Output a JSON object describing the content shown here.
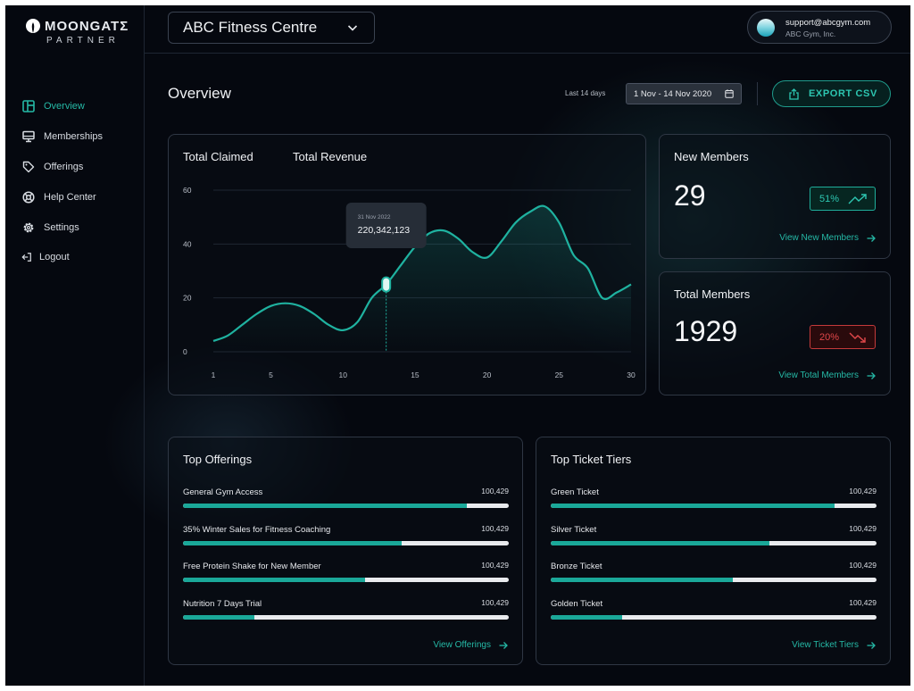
{
  "brand": {
    "name": "MOONGATΣ",
    "subtitle": "PARTNER"
  },
  "sidebar": {
    "items": [
      {
        "label": "Overview",
        "icon": "layout-icon",
        "active": true
      },
      {
        "label": "Memberships",
        "icon": "monitor-icon",
        "active": false
      },
      {
        "label": "Offerings",
        "icon": "tag-icon",
        "active": false
      },
      {
        "label": "Help Center",
        "icon": "lifebuoy-icon",
        "active": false
      },
      {
        "label": "Settings",
        "icon": "gear-icon",
        "active": false
      },
      {
        "label": "Logout",
        "icon": "logout-icon",
        "active": false
      }
    ]
  },
  "header": {
    "gym_name": "ABC Fitness Centre",
    "account_email": "support@abcgym.com",
    "account_company": "ABC Gym, Inc."
  },
  "overview": {
    "title": "Overview",
    "range_label": "Last 14 days",
    "date_range": "1 Nov - 14 Nov 2020",
    "export_label": "EXPORT CSV"
  },
  "chart": {
    "tabs": [
      "Total Claimed",
      "Total Revenue"
    ],
    "tooltip_date": "31 Nov 2022",
    "tooltip_value": "220,342,123"
  },
  "chart_data": {
    "type": "line",
    "x": [
      1,
      2,
      3,
      4,
      5,
      6,
      7,
      8,
      9,
      10,
      11,
      12,
      13,
      14,
      15,
      16,
      17,
      18,
      19,
      20,
      21,
      22,
      23,
      24,
      25,
      26,
      27,
      28,
      29,
      30
    ],
    "series": [
      {
        "values": [
          4,
          6,
          10,
          14,
          17,
          18,
          17,
          14,
          10,
          8,
          11,
          20,
          25,
          32,
          39,
          44,
          45,
          42,
          37,
          35,
          41,
          48,
          52,
          54,
          48,
          36,
          31,
          20,
          22,
          25
        ]
      }
    ],
    "x_ticks": [
      "1",
      "5",
      "10",
      "15",
      "20",
      "25",
      "30"
    ],
    "y_ticks": [
      "0",
      "20",
      "40",
      "60"
    ],
    "ylim": [
      0,
      60
    ],
    "grid": true,
    "highlight_x": 13,
    "accent": "#1fb2a0"
  },
  "stats": {
    "new_members": {
      "title": "New Members",
      "value": "29",
      "change": "51%",
      "trend": "up",
      "link": "View New Members"
    },
    "total_members": {
      "title": "Total Members",
      "value": "1929",
      "change": "20%",
      "trend": "down",
      "link": "View Total Members"
    }
  },
  "top_offerings": {
    "title": "Top Offerings",
    "items": [
      {
        "name": "General Gym Access",
        "value": "100,429",
        "fill": 0.87
      },
      {
        "name": "35% Winter Sales for Fitness Coaching",
        "value": "100,429",
        "fill": 0.67
      },
      {
        "name": "Free Protein Shake for New Member",
        "value": "100,429",
        "fill": 0.56
      },
      {
        "name": "Nutrition 7 Days Trial",
        "value": "100,429",
        "fill": 0.22
      }
    ],
    "link": "View Offerings"
  },
  "top_tiers": {
    "title": "Top Ticket Tiers",
    "items": [
      {
        "name": "Green Ticket",
        "value": "100,429",
        "fill": 0.87
      },
      {
        "name": "Silver Ticket",
        "value": "100,429",
        "fill": 0.67
      },
      {
        "name": "Bronze Ticket",
        "value": "100,429",
        "fill": 0.56
      },
      {
        "name": "Golden Ticket",
        "value": "100,429",
        "fill": 0.22
      }
    ],
    "link": "View Ticket Tiers"
  },
  "colors": {
    "accent": "#1fb2a0",
    "danger": "#e0474a",
    "background": "#05080f"
  }
}
